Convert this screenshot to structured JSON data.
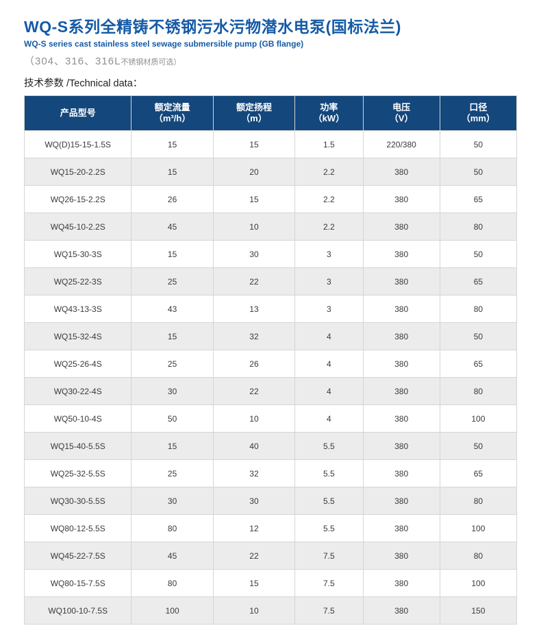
{
  "header": {
    "title_cn": "WQ-S系列全精铸不锈钢污水污物潜水电泵(国标法兰)",
    "subtitle_en": "WQ-S series cast stainless steel sewage submersible pump (GB flange)",
    "material_note_main": "（304、316、316L",
    "material_note_small": "不锈钢材质可选）",
    "section_label": "技术参数 /Technical data："
  },
  "colors": {
    "title_blue": "#155aa6",
    "table_header_bg": "#14477c",
    "row_alt_bg": "#ececec",
    "border_gray": "#d5d5d5",
    "note_gray": "#8f8f8f"
  },
  "table": {
    "columns": [
      {
        "key": "model",
        "label": "产品型号",
        "unit": ""
      },
      {
        "key": "flow",
        "label": "额定流量",
        "unit": "（m³/h）"
      },
      {
        "key": "head",
        "label": "额定扬程",
        "unit": "（m）"
      },
      {
        "key": "power",
        "label": "功率",
        "unit": "（kW）"
      },
      {
        "key": "voltage",
        "label": "电压",
        "unit": "（V）"
      },
      {
        "key": "diameter",
        "label": "口径",
        "unit": "（mm）"
      }
    ],
    "rows": [
      [
        "WQ(D)15-15-1.5S",
        "15",
        "15",
        "1.5",
        "220/380",
        "50"
      ],
      [
        "WQ15-20-2.2S",
        "15",
        "20",
        "2.2",
        "380",
        "50"
      ],
      [
        "WQ26-15-2.2S",
        "26",
        "15",
        "2.2",
        "380",
        "65"
      ],
      [
        "WQ45-10-2.2S",
        "45",
        "10",
        "2.2",
        "380",
        "80"
      ],
      [
        "WQ15-30-3S",
        "15",
        "30",
        "3",
        "380",
        "50"
      ],
      [
        "WQ25-22-3S",
        "25",
        "22",
        "3",
        "380",
        "65"
      ],
      [
        "WQ43-13-3S",
        "43",
        "13",
        "3",
        "380",
        "80"
      ],
      [
        "WQ15-32-4S",
        "15",
        "32",
        "4",
        "380",
        "50"
      ],
      [
        "WQ25-26-4S",
        "25",
        "26",
        "4",
        "380",
        "65"
      ],
      [
        "WQ30-22-4S",
        "30",
        "22",
        "4",
        "380",
        "80"
      ],
      [
        "WQ50-10-4S",
        "50",
        "10",
        "4",
        "380",
        "100"
      ],
      [
        "WQ15-40-5.5S",
        "15",
        "40",
        "5.5",
        "380",
        "50"
      ],
      [
        "WQ25-32-5.5S",
        "25",
        "32",
        "5.5",
        "380",
        "65"
      ],
      [
        "WQ30-30-5.5S",
        "30",
        "30",
        "5.5",
        "380",
        "80"
      ],
      [
        "WQ80-12-5.5S",
        "80",
        "12",
        "5.5",
        "380",
        "100"
      ],
      [
        "WQ45-22-7.5S",
        "45",
        "22",
        "7.5",
        "380",
        "80"
      ],
      [
        "WQ80-15-7.5S",
        "80",
        "15",
        "7.5",
        "380",
        "100"
      ],
      [
        "WQ100-10-7.5S",
        "100",
        "10",
        "7.5",
        "380",
        "150"
      ]
    ]
  }
}
